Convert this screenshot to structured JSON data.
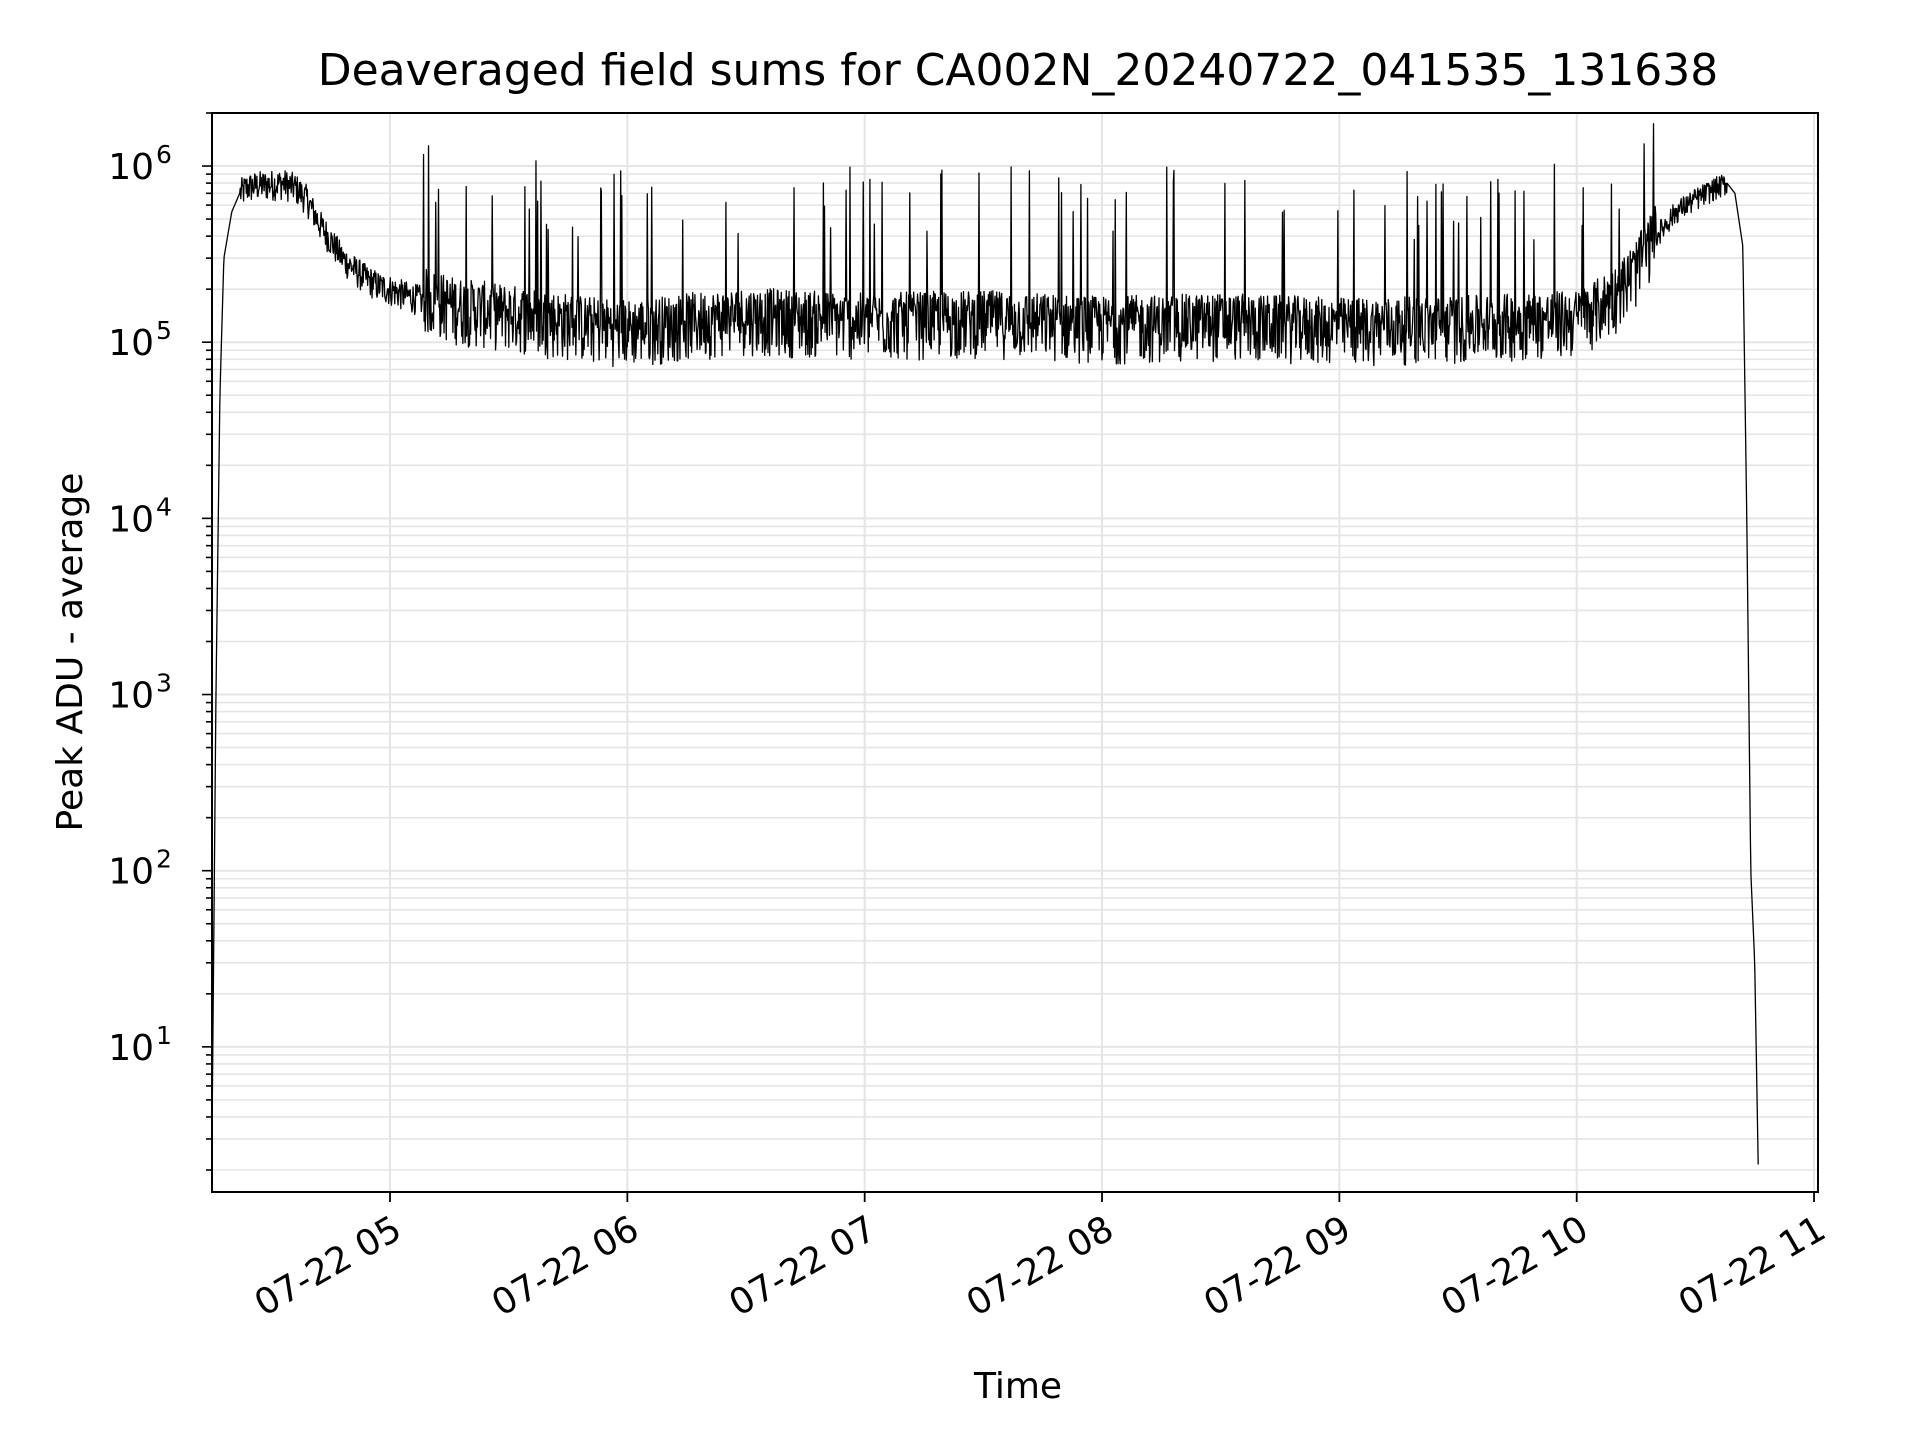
{
  "chart_data": {
    "type": "line",
    "title": "Deaveraged field sums for CA002N_20240722_041535_131638",
    "xlabel": "Time",
    "ylabel": "Peak ADU - average",
    "yscale": "log",
    "xlim": [
      "2024-07-22 04:15",
      "2024-07-22 11:01"
    ],
    "ylim": [
      1.5,
      2000000
    ],
    "x_ticks": [
      {
        "value": "2024-07-22 05:00",
        "label": "07-22 05"
      },
      {
        "value": "2024-07-22 06:00",
        "label": "07-22 06"
      },
      {
        "value": "2024-07-22 07:00",
        "label": "07-22 07"
      },
      {
        "value": "2024-07-22 08:00",
        "label": "07-22 08"
      },
      {
        "value": "2024-07-22 09:00",
        "label": "07-22 09"
      },
      {
        "value": "2024-07-22 10:00",
        "label": "07-22 10"
      },
      {
        "value": "2024-07-22 11:00",
        "label": "07-22 11"
      }
    ],
    "y_ticks": [
      {
        "value": 10,
        "base": "10",
        "exp": "1"
      },
      {
        "value": 100,
        "base": "10",
        "exp": "2"
      },
      {
        "value": 1000,
        "base": "10",
        "exp": "3"
      },
      {
        "value": 10000,
        "base": "10",
        "exp": "4"
      },
      {
        "value": 100000,
        "base": "10",
        "exp": "5"
      },
      {
        "value": 1000000,
        "base": "10",
        "exp": "6"
      }
    ],
    "grid": true,
    "line_color": "#000000",
    "grid_color": "#e5e5e5",
    "series": [
      {
        "x": [
          "2024-07-22 04:15",
          "2024-07-22 04:16",
          "2024-07-22 04:17",
          "2024-07-22 04:18",
          "2024-07-22 04:20",
          "2024-07-22 04:22",
          "2024-07-22 04:24",
          "2024-07-22 04:27",
          "2024-07-22 04:30",
          "2024-07-22 04:33",
          "2024-07-22 04:36",
          "2024-07-22 04:39",
          "2024-07-22 04:42",
          "2024-07-22 04:45",
          "2024-07-22 04:48",
          "2024-07-22 04:51",
          "2024-07-22 04:54",
          "2024-07-22 04:57",
          "2024-07-22 05:00",
          "2024-07-22 05:04",
          "2024-07-22 05:08",
          "2024-07-22 05:12",
          "2024-07-22 05:16",
          "2024-07-22 05:20",
          "2024-07-22 05:25",
          "2024-07-22 05:30",
          "2024-07-22 05:35",
          "2024-07-22 05:40",
          "2024-07-22 05:45",
          "2024-07-22 05:50",
          "2024-07-22 05:55",
          "2024-07-22 06:00",
          "2024-07-22 06:15",
          "2024-07-22 06:30",
          "2024-07-22 06:45",
          "2024-07-22 07:00",
          "2024-07-22 07:30",
          "2024-07-22 08:00",
          "2024-07-22 08:30",
          "2024-07-22 09:00",
          "2024-07-22 09:30",
          "2024-07-22 09:45",
          "2024-07-22 10:00",
          "2024-07-22 10:05",
          "2024-07-22 10:10",
          "2024-07-22 10:15",
          "2024-07-22 10:20",
          "2024-07-22 10:25",
          "2024-07-22 10:30",
          "2024-07-22 10:35",
          "2024-07-22 10:38",
          "2024-07-22 10:40",
          "2024-07-22 10:42",
          "2024-07-22 10:43",
          "2024-07-22 10:44",
          "2024-07-22 10:45",
          "2024-07-22 10:46"
        ],
        "values": [
          3,
          1000,
          50000,
          300000,
          550000,
          700000,
          760000,
          780000,
          790000,
          800000,
          760000,
          650000,
          480000,
          380000,
          300000,
          260000,
          230000,
          210000,
          200000,
          185000,
          175000,
          165000,
          155000,
          150000,
          145000,
          140000,
          135000,
          130000,
          125000,
          120000,
          118000,
          115000,
          125000,
          135000,
          130000,
          125000,
          130000,
          120000,
          125000,
          118000,
          120000,
          125000,
          130000,
          150000,
          180000,
          250000,
          400000,
          550000,
          650000,
          750000,
          800000,
          700000,
          350000,
          10000,
          100,
          30,
          1.5
        ]
      }
    ]
  }
}
